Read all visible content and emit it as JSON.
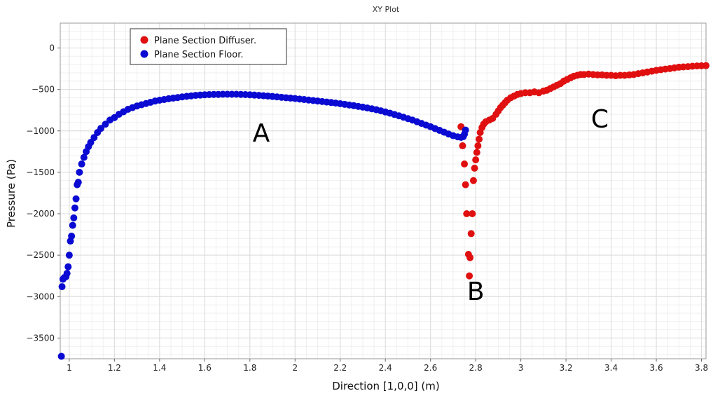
{
  "chart_data": {
    "type": "scatter",
    "title": "XY Plot",
    "xlabel": "Direction [1,0,0] (m)",
    "ylabel": "Pressure (Pa)",
    "xlim": [
      0.96,
      3.82
    ],
    "ylim": [
      -3750,
      300
    ],
    "xticks": [
      1,
      1.2,
      1.4,
      1.6,
      1.8,
      2,
      2.2,
      2.4,
      2.6,
      2.8,
      3,
      3.2,
      3.4,
      3.6,
      3.8
    ],
    "xtick_labels": [
      "1",
      "1.2",
      "1.4",
      "1.6",
      "1.8",
      "2",
      "2.2",
      "2.4",
      "2.6",
      "2.8",
      "3",
      "3.2",
      "3.4",
      "3.6",
      "3.8"
    ],
    "yticks": [
      0,
      -500,
      -1000,
      -1500,
      -2000,
      -2500,
      -3000,
      -3500
    ],
    "ytick_labels": [
      "0",
      "−500",
      "−1000",
      "−1500",
      "−2000",
      "−2500",
      "−3000",
      "−3500"
    ],
    "grid": true,
    "legend_position": "top-left",
    "series": [
      {
        "name": "Plane Section Diffuser.",
        "color": "#e01010",
        "points": [
          [
            2.735,
            -950
          ],
          [
            2.742,
            -1180
          ],
          [
            2.75,
            -1400
          ],
          [
            2.755,
            -1650
          ],
          [
            2.76,
            -2000
          ],
          [
            2.768,
            -2490
          ],
          [
            2.775,
            -2530
          ],
          [
            2.772,
            -2750
          ],
          [
            2.78,
            -2240
          ],
          [
            2.785,
            -2000
          ],
          [
            2.79,
            -1600
          ],
          [
            2.795,
            -1450
          ],
          [
            2.8,
            -1350
          ],
          [
            2.805,
            -1260
          ],
          [
            2.81,
            -1180
          ],
          [
            2.815,
            -1100
          ],
          [
            2.82,
            -1020
          ],
          [
            2.828,
            -960
          ],
          [
            2.835,
            -920
          ],
          [
            2.845,
            -890
          ],
          [
            2.86,
            -870
          ],
          [
            2.875,
            -850
          ],
          [
            2.89,
            -800
          ],
          [
            2.9,
            -760
          ],
          [
            2.91,
            -720
          ],
          [
            2.92,
            -690
          ],
          [
            2.93,
            -660
          ],
          [
            2.94,
            -630
          ],
          [
            2.955,
            -600
          ],
          [
            2.97,
            -580
          ],
          [
            2.985,
            -560
          ],
          [
            3.0,
            -550
          ],
          [
            3.02,
            -540
          ],
          [
            3.04,
            -540
          ],
          [
            3.06,
            -530
          ],
          [
            3.08,
            -540
          ],
          [
            3.1,
            -520
          ],
          [
            3.115,
            -510
          ],
          [
            3.13,
            -490
          ],
          [
            3.145,
            -470
          ],
          [
            3.16,
            -450
          ],
          [
            3.175,
            -430
          ],
          [
            3.19,
            -400
          ],
          [
            3.205,
            -380
          ],
          [
            3.22,
            -360
          ],
          [
            3.235,
            -340
          ],
          [
            3.25,
            -330
          ],
          [
            3.265,
            -320
          ],
          [
            3.28,
            -320
          ],
          [
            3.3,
            -315
          ],
          [
            3.32,
            -320
          ],
          [
            3.34,
            -325
          ],
          [
            3.36,
            -325
          ],
          [
            3.38,
            -330
          ],
          [
            3.4,
            -330
          ],
          [
            3.42,
            -335
          ],
          [
            3.44,
            -330
          ],
          [
            3.46,
            -330
          ],
          [
            3.48,
            -325
          ],
          [
            3.5,
            -320
          ],
          [
            3.52,
            -310
          ],
          [
            3.54,
            -300
          ],
          [
            3.56,
            -290
          ],
          [
            3.58,
            -280
          ],
          [
            3.6,
            -270
          ],
          [
            3.62,
            -262
          ],
          [
            3.64,
            -255
          ],
          [
            3.66,
            -248
          ],
          [
            3.68,
            -240
          ],
          [
            3.7,
            -232
          ],
          [
            3.72,
            -228
          ],
          [
            3.74,
            -225
          ],
          [
            3.76,
            -220
          ],
          [
            3.78,
            -217
          ],
          [
            3.8,
            -215
          ],
          [
            3.82,
            -213
          ]
        ]
      },
      {
        "name": "Plane Section Floor.",
        "color": "#0a0ad2",
        "points": [
          [
            0.965,
            -3720
          ],
          [
            0.968,
            -2880
          ],
          [
            0.972,
            -2790
          ],
          [
            0.978,
            -2770
          ],
          [
            0.985,
            -2760
          ],
          [
            0.99,
            -2720
          ],
          [
            0.995,
            -2640
          ],
          [
            1.0,
            -2500
          ],
          [
            1.005,
            -2330
          ],
          [
            1.01,
            -2270
          ],
          [
            1.015,
            -2140
          ],
          [
            1.02,
            -2050
          ],
          [
            1.025,
            -1930
          ],
          [
            1.03,
            -1820
          ],
          [
            1.035,
            -1650
          ],
          [
            1.04,
            -1620
          ],
          [
            1.045,
            -1500
          ],
          [
            1.055,
            -1400
          ],
          [
            1.065,
            -1320
          ],
          [
            1.075,
            -1250
          ],
          [
            1.085,
            -1190
          ],
          [
            1.095,
            -1140
          ],
          [
            1.11,
            -1080
          ],
          [
            1.125,
            -1020
          ],
          [
            1.14,
            -970
          ],
          [
            1.16,
            -920
          ],
          [
            1.18,
            -870
          ],
          [
            1.2,
            -840
          ],
          [
            1.22,
            -800
          ],
          [
            1.24,
            -770
          ],
          [
            1.26,
            -740
          ],
          [
            1.28,
            -720
          ],
          [
            1.3,
            -700
          ],
          [
            1.32,
            -685
          ],
          [
            1.34,
            -670
          ],
          [
            1.36,
            -655
          ],
          [
            1.38,
            -640
          ],
          [
            1.4,
            -630
          ],
          [
            1.42,
            -622
          ],
          [
            1.44,
            -612
          ],
          [
            1.46,
            -605
          ],
          [
            1.48,
            -598
          ],
          [
            1.5,
            -590
          ],
          [
            1.52,
            -584
          ],
          [
            1.54,
            -578
          ],
          [
            1.56,
            -572
          ],
          [
            1.58,
            -568
          ],
          [
            1.6,
            -565
          ],
          [
            1.62,
            -562
          ],
          [
            1.64,
            -560
          ],
          [
            1.66,
            -560
          ],
          [
            1.68,
            -558
          ],
          [
            1.7,
            -558
          ],
          [
            1.72,
            -558
          ],
          [
            1.74,
            -558
          ],
          [
            1.76,
            -560
          ],
          [
            1.78,
            -562
          ],
          [
            1.8,
            -565
          ],
          [
            1.82,
            -568
          ],
          [
            1.84,
            -572
          ],
          [
            1.86,
            -576
          ],
          [
            1.88,
            -580
          ],
          [
            1.9,
            -585
          ],
          [
            1.92,
            -590
          ],
          [
            1.94,
            -595
          ],
          [
            1.96,
            -600
          ],
          [
            1.98,
            -605
          ],
          [
            2.0,
            -610
          ],
          [
            2.02,
            -616
          ],
          [
            2.04,
            -622
          ],
          [
            2.06,
            -628
          ],
          [
            2.08,
            -634
          ],
          [
            2.1,
            -640
          ],
          [
            2.12,
            -646
          ],
          [
            2.14,
            -652
          ],
          [
            2.16,
            -658
          ],
          [
            2.18,
            -665
          ],
          [
            2.2,
            -672
          ],
          [
            2.22,
            -680
          ],
          [
            2.24,
            -688
          ],
          [
            2.26,
            -696
          ],
          [
            2.28,
            -705
          ],
          [
            2.3,
            -714
          ],
          [
            2.32,
            -724
          ],
          [
            2.34,
            -734
          ],
          [
            2.36,
            -745
          ],
          [
            2.38,
            -758
          ],
          [
            2.4,
            -772
          ],
          [
            2.42,
            -786
          ],
          [
            2.44,
            -802
          ],
          [
            2.46,
            -818
          ],
          [
            2.48,
            -835
          ],
          [
            2.5,
            -852
          ],
          [
            2.52,
            -870
          ],
          [
            2.54,
            -890
          ],
          [
            2.56,
            -910
          ],
          [
            2.58,
            -930
          ],
          [
            2.6,
            -950
          ],
          [
            2.62,
            -972
          ],
          [
            2.64,
            -994
          ],
          [
            2.66,
            -1016
          ],
          [
            2.68,
            -1038
          ],
          [
            2.7,
            -1058
          ],
          [
            2.72,
            -1072
          ],
          [
            2.735,
            -1078
          ],
          [
            2.745,
            -1070
          ],
          [
            2.75,
            -1040
          ],
          [
            2.755,
            -990
          ]
        ]
      }
    ],
    "annotations": [
      {
        "text": "A",
        "x": 1.85,
        "y": -1130
      },
      {
        "text": "B",
        "x": 2.8,
        "y": -3040
      },
      {
        "text": "C",
        "x": 3.35,
        "y": -960
      }
    ]
  }
}
